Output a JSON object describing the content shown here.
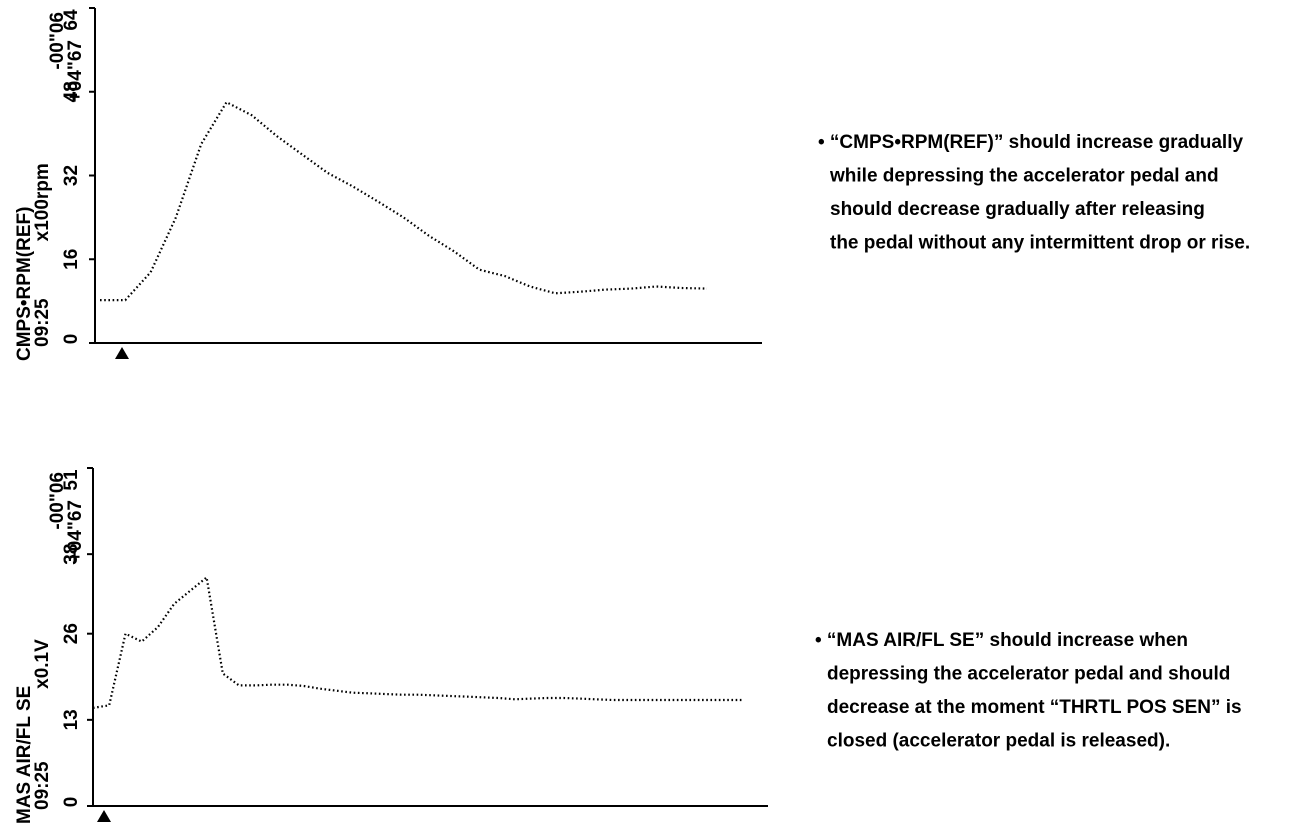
{
  "chart_data": [
    {
      "type": "line",
      "y_label": "CMPS•RPM(REF)",
      "time": "09:25",
      "unit": "x100rpm",
      "cursor_labels": [
        "-00\"06",
        "+04\"67"
      ],
      "ylim": [
        0,
        64
      ],
      "yticks": [
        0,
        16,
        32,
        48,
        64
      ],
      "color": "#000000",
      "values": [
        8.2,
        8.2,
        13.5,
        24,
        38,
        46,
        43.5,
        39.5,
        36,
        32.5,
        29.9,
        27,
        24,
        20.5,
        17.5,
        14,
        12.8,
        10.8,
        9.5,
        9.8,
        10.2,
        10.4,
        10.8,
        10.5,
        10.4
      ],
      "note": [
        "• “CMPS•RPM(REF)” should increase gradually",
        "while depressing the accelerator pedal and",
        "should decrease gradually after releasing",
        "the pedal without any intermittent drop or rise."
      ]
    },
    {
      "type": "line",
      "y_label": "MAS AIR/FL SE",
      "time": "09:25",
      "unit": "x0.1V",
      "cursor_labels": [
        "-00\"06",
        "+04\"67"
      ],
      "ylim": [
        0,
        51
      ],
      "yticks": [
        0,
        13,
        26,
        38,
        51
      ],
      "color": "#000000",
      "values": [
        14.8,
        15.2,
        26,
        24.8,
        27,
        30.5,
        32.5,
        34.5,
        20,
        18.2,
        18.2,
        18.3,
        18.3,
        18.1,
        17.7,
        17.4,
        17.1,
        17,
        16.9,
        16.8,
        16.8,
        16.7,
        16.6,
        16.5,
        16.4,
        16.3,
        16.1,
        16.2,
        16.3,
        16.3,
        16.2,
        16.1,
        16,
        16,
        16,
        16,
        16,
        16,
        16,
        16,
        16
      ],
      "note": [
        "• “MAS AIR/FL SE” should increase when",
        "depressing the accelerator pedal and should",
        "decrease at the moment “THRTL POS SEN” is",
        "closed (accelerator pedal is released)."
      ]
    }
  ]
}
